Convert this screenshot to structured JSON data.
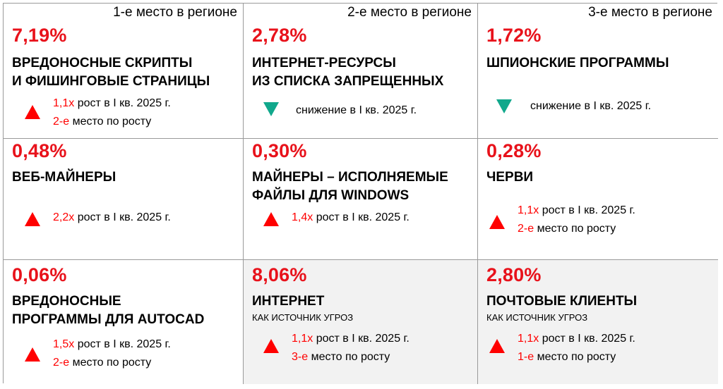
{
  "colors": {
    "accent_red": "#e8121b",
    "up_arrow": "#ff0000",
    "down_arrow": "#11a88c",
    "grid_border": "#9a9a9a",
    "shaded_cell": "#f2f2f2"
  },
  "cells": [
    {
      "rank": "1-е место в регионе",
      "percent": "7,19%",
      "title_line1": "ВРЕДОНОСНЫЕ СКРИПТЫ",
      "title_line2": "И ФИШИНГОВЫЕ СТРАНИЦЫ",
      "trend": "up",
      "trend_icon": "triangle-up-icon",
      "growth_value": "1,1x",
      "growth_text": "рост в I кв. 2025 г.",
      "place_value": "2-е",
      "place_text": "место по росту"
    },
    {
      "rank": "2-е место в регионе",
      "percent": "2,78%",
      "title_line1": "ИНТЕРНЕТ-РЕСУРСЫ",
      "title_line2": "ИЗ СПИСКА ЗАПРЕЩЕННЫХ",
      "trend": "down",
      "trend_icon": "triangle-down-icon",
      "decline_text": "снижение в I кв. 2025 г."
    },
    {
      "rank": "3-е место в регионе",
      "percent": "1,72%",
      "title_line1": "ШПИОНСКИЕ ПРОГРАММЫ",
      "trend": "down",
      "trend_icon": "triangle-down-icon",
      "decline_text": "снижение в I кв. 2025 г."
    },
    {
      "percent": "0,48%",
      "title_line1": "ВЕБ-МАЙНЕРЫ",
      "trend": "up",
      "trend_icon": "triangle-up-icon",
      "growth_value": "2,2x",
      "growth_text": "рост в I кв. 2025 г."
    },
    {
      "percent": "0,30%",
      "title_line1": "МАЙНЕРЫ – ИСПОЛНЯЕМЫЕ",
      "title_line2": "ФАЙЛЫ ДЛЯ WINDOWS",
      "trend": "up",
      "trend_icon": "triangle-up-icon",
      "growth_value": "1,4x",
      "growth_text": "рост в I кв. 2025 г."
    },
    {
      "percent": "0,28%",
      "title_line1": "ЧЕРВИ",
      "trend": "up",
      "trend_icon": "triangle-up-icon",
      "growth_value": "1,1x",
      "growth_text": "рост в I кв. 2025 г.",
      "place_value": "2-е",
      "place_text": "место по росту"
    },
    {
      "percent": "0,06%",
      "title_line1": "ВРЕДОНОСНЫЕ",
      "title_line2": "ПРОГРАММЫ ДЛЯ AUTOCAD",
      "trend": "up",
      "trend_icon": "triangle-up-icon",
      "growth_value": "1,5x",
      "growth_text": "рост в I кв. 2025 г.",
      "place_value": "2-е",
      "place_text": "место по росту"
    },
    {
      "percent": "8,06%",
      "title_line1": "ИНТЕРНЕТ",
      "subtitle": "КАК ИСТОЧНИК УГРОЗ",
      "trend": "up",
      "trend_icon": "triangle-up-icon",
      "growth_value": "1,1x",
      "growth_text": "рост в I кв. 2025 г.",
      "place_value": "3-е",
      "place_text": "место по росту"
    },
    {
      "percent": "2,80%",
      "title_line1": "ПОЧТОВЫЕ КЛИЕНТЫ",
      "subtitle": "КАК ИСТОЧНИК УГРОЗ",
      "trend": "up",
      "trend_icon": "triangle-up-icon",
      "growth_value": "1,1x",
      "growth_text": "рост в I кв. 2025 г.",
      "place_value": "1-е",
      "place_text": "место по росту"
    }
  ]
}
